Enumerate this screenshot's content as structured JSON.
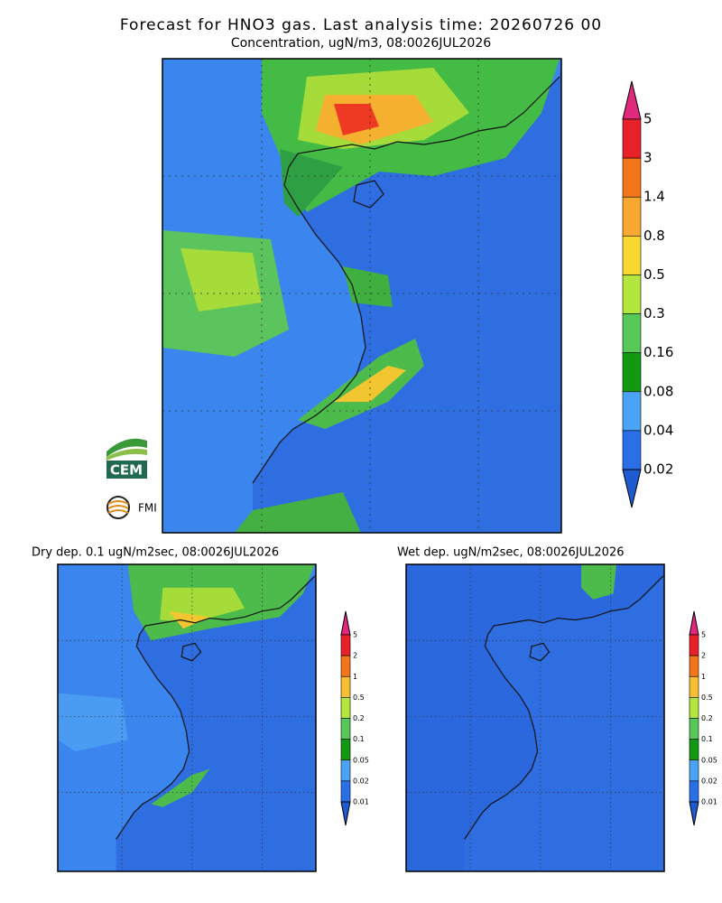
{
  "header": {
    "title": "Forecast for HNO3 gas. Last analysis time: 20260726 00",
    "subtitle": "Concentration, ugN/m3, 08:0026JUL2026"
  },
  "panels": [
    {
      "colorbar": [
        "5",
        "3",
        "1.4",
        "0.8",
        "0.5",
        "0.3",
        "0.16",
        "0.08",
        "0.04",
        "0.02"
      ]
    },
    {
      "title": "Dry dep. 0.1 ugN/m2sec, 08:0026JUL2026",
      "colorbar": [
        "5",
        "2",
        "1",
        "0.5",
        "0.2",
        "0.1",
        "0.05",
        "0.02",
        "0.01"
      ]
    },
    {
      "title": "Wet dep. ugN/m2sec, 08:0026JUL2026",
      "colorbar": [
        "5",
        "2",
        "1",
        "0.5",
        "0.2",
        "0.1",
        "0.05",
        "0.02",
        "0.01"
      ]
    }
  ],
  "logos": [
    "CEM",
    "FMI"
  ]
}
